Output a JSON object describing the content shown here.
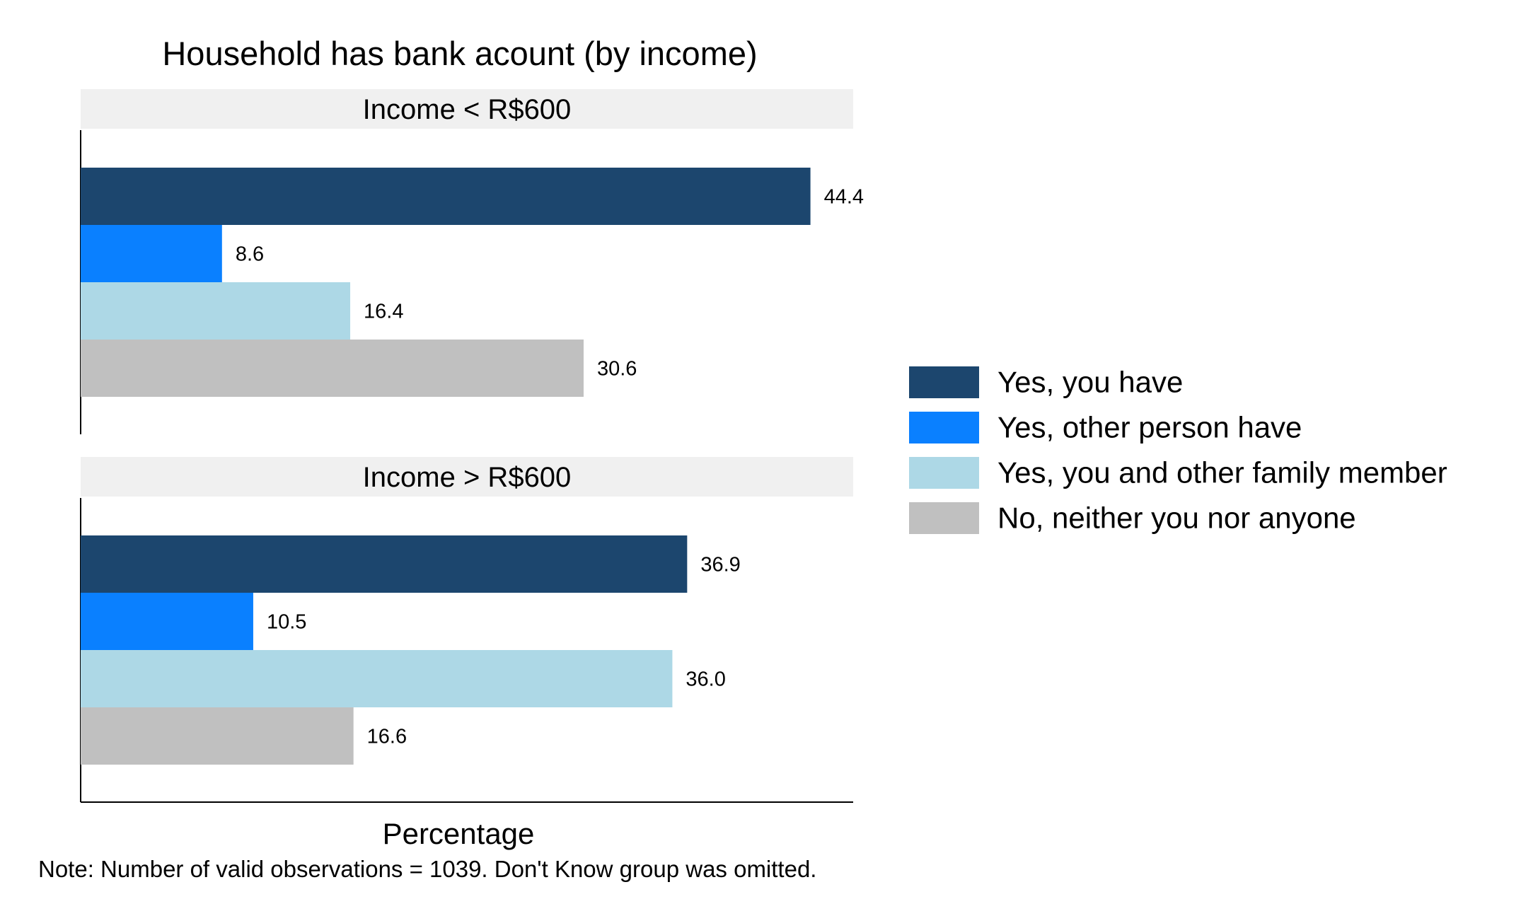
{
  "chart_data": {
    "type": "bar",
    "orientation": "horizontal",
    "title": "Household has bank acount (by income)",
    "xlabel": "Percentage",
    "ylabel": "",
    "note": "Note: Number of valid observations = 1039. Don't Know group was omitted.",
    "xlim": [
      0,
      47
    ],
    "grid": false,
    "legend_position": "right",
    "series": [
      {
        "name": "Yes, you have",
        "color": "#1c466e"
      },
      {
        "name": "Yes, other person have",
        "color": "#0a80ff"
      },
      {
        "name": "Yes, you and other family member",
        "color": "#add8e6"
      },
      {
        "name": "No, neither you nor anyone",
        "color": "#c0c0c0"
      }
    ],
    "panels": [
      {
        "label": "Income < R$600",
        "values": [
          44.4,
          8.6,
          16.4,
          30.6
        ],
        "value_labels": [
          "44.4",
          "8.6",
          "16.4",
          "30.6"
        ]
      },
      {
        "label": "Income > R$600",
        "values": [
          36.9,
          10.5,
          36.0,
          16.6
        ],
        "value_labels": [
          "36.9",
          "10.5",
          "36.0",
          "16.6"
        ]
      }
    ]
  }
}
